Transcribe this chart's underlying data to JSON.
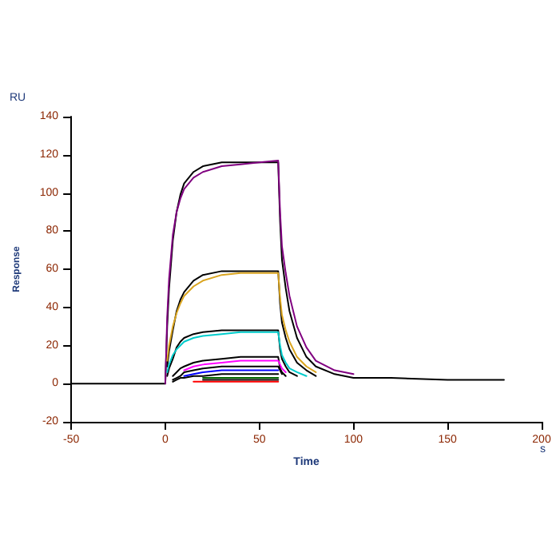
{
  "chart_data": {
    "type": "line",
    "xlabel": "Time",
    "ylabel": "Response",
    "annotations": [
      "RU",
      "s"
    ],
    "x": [
      -50,
      0,
      1,
      2,
      4,
      6,
      8,
      10,
      15,
      20,
      30,
      40,
      50,
      60,
      61,
      62,
      64,
      66,
      70,
      75,
      80,
      90,
      100,
      120,
      150,
      180
    ],
    "xlim": [
      -50,
      200
    ],
    "xticks": [
      -50,
      0,
      50,
      100,
      150,
      200
    ],
    "ylim": [
      -20,
      140
    ],
    "yticks": [
      -20,
      0,
      20,
      40,
      60,
      80,
      100,
      120,
      140
    ],
    "grid": false,
    "marker": "none",
    "line_style": "solid",
    "series": [
      {
        "color": "#000000",
        "values": [
          0,
          0,
          30,
          50,
          75,
          90,
          99,
          105,
          111,
          114,
          116,
          116,
          116,
          116,
          85,
          65,
          50,
          38,
          24,
          14,
          9,
          5,
          3,
          3,
          2,
          2
        ]
      },
      {
        "color": "#000000",
        "values": [
          null,
          null,
          9,
          17,
          28,
          38,
          44,
          48,
          54,
          57,
          59,
          59,
          59,
          59,
          42,
          32,
          24,
          18,
          11,
          7,
          4,
          null,
          null,
          null,
          null,
          null
        ]
      },
      {
        "color": "#000000",
        "values": [
          null,
          null,
          4,
          8,
          13,
          19,
          22,
          24,
          26,
          27,
          28,
          28,
          28,
          28,
          18,
          13,
          9,
          6,
          4,
          null,
          null,
          null,
          null,
          null,
          null,
          null
        ]
      },
      {
        "color": "#000000",
        "values": [
          null,
          null,
          null,
          null,
          4,
          6,
          8,
          9,
          11,
          12,
          13,
          14,
          14,
          14,
          8,
          6,
          4,
          null,
          null,
          null,
          null,
          null,
          null,
          null,
          null,
          null
        ]
      },
      {
        "color": "#000000",
        "values": [
          null,
          null,
          null,
          null,
          2,
          3,
          4,
          6,
          7,
          8,
          9,
          9,
          9,
          9,
          7,
          5,
          null,
          null,
          null,
          null,
          null,
          null,
          null,
          null,
          null,
          null
        ]
      },
      {
        "color": "#000000",
        "values": [
          null,
          null,
          null,
          null,
          1,
          2,
          3,
          3,
          4,
          4,
          5,
          5,
          5,
          5,
          null,
          null,
          null,
          null,
          null,
          null,
          null,
          null,
          null,
          null,
          null,
          null
        ]
      },
      {
        "color": "#000000",
        "values": [
          null,
          null,
          null,
          null,
          null,
          null,
          null,
          null,
          null,
          2,
          2,
          2,
          2,
          2,
          null,
          null,
          null,
          null,
          null,
          null,
          null,
          null,
          null,
          null,
          null,
          null
        ]
      },
      {
        "color": "#800080",
        "values": [
          null,
          0,
          35,
          55,
          78,
          90,
          97,
          102,
          108,
          111,
          114,
          115,
          116,
          117,
          90,
          72,
          58,
          46,
          30,
          19,
          12,
          7,
          5,
          null,
          null,
          null
        ]
      },
      {
        "color": "#daa520",
        "values": [
          null,
          null,
          12,
          20,
          30,
          37,
          42,
          46,
          51,
          54,
          57,
          58,
          58,
          58,
          45,
          36,
          28,
          22,
          14,
          9,
          6,
          null,
          null,
          null,
          null,
          null
        ]
      },
      {
        "color": "#00cccc",
        "values": [
          null,
          null,
          6,
          10,
          15,
          18,
          20,
          22,
          24,
          25,
          26,
          27,
          27,
          27,
          20,
          15,
          11,
          8,
          6,
          4,
          null,
          null,
          null,
          null,
          null,
          null
        ]
      },
      {
        "color": "#ff00ff",
        "values": [
          null,
          null,
          null,
          null,
          null,
          null,
          null,
          7,
          9,
          10,
          11,
          12,
          12,
          12,
          10,
          8,
          6,
          null,
          null,
          null,
          null,
          null,
          null,
          null,
          null,
          null
        ]
      },
      {
        "color": "#0000ff",
        "values": [
          null,
          null,
          null,
          null,
          null,
          null,
          null,
          4,
          5,
          6,
          7,
          7,
          7,
          7,
          null,
          null,
          null,
          null,
          null,
          null,
          null,
          null,
          null,
          null,
          null,
          null
        ]
      },
      {
        "color": "#006400",
        "values": [
          null,
          null,
          null,
          null,
          null,
          null,
          null,
          null,
          null,
          3,
          3,
          3,
          3,
          3,
          null,
          null,
          null,
          null,
          null,
          null,
          null,
          null,
          null,
          null,
          null,
          null
        ]
      },
      {
        "color": "#ff0000",
        "values": [
          null,
          null,
          null,
          null,
          null,
          null,
          null,
          null,
          1,
          1,
          1,
          1,
          1,
          1,
          null,
          null,
          null,
          null,
          null,
          null,
          null,
          null,
          null,
          null,
          null,
          null
        ]
      }
    ]
  }
}
